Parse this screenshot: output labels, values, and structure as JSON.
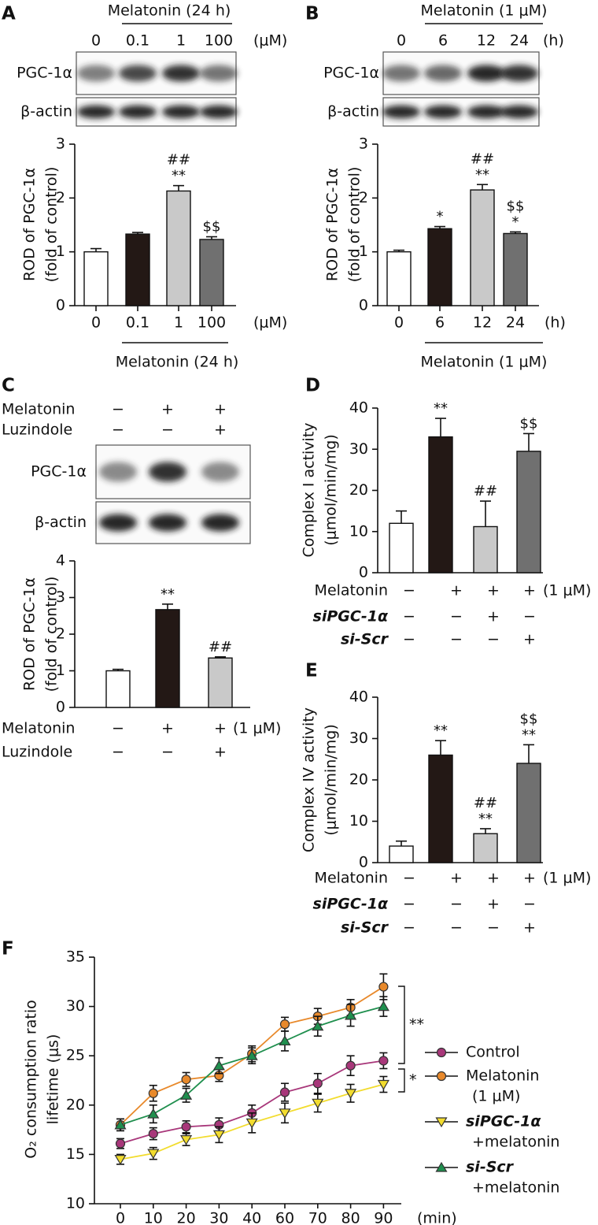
{
  "chart_data": [
    {
      "panel": "A",
      "type": "bar",
      "blot": {
        "title": "Melatonin (24 h)",
        "lanes": [
          "0",
          "0.1",
          "1",
          "100"
        ],
        "unit": "(μM)",
        "bands": [
          "PGC-1α",
          "β-actin"
        ]
      },
      "ylabel": [
        "ROD of PGC-1α",
        "(fold of control)"
      ],
      "ylim": [
        0,
        3
      ],
      "yticks": [
        0,
        1,
        2,
        3
      ],
      "categories": [
        "0",
        "0.1",
        "1",
        "100"
      ],
      "xunit": "(μM)",
      "xgroup": "Melatonin (24 h)",
      "values": [
        1.0,
        1.33,
        2.13,
        1.23
      ],
      "errors": [
        0.06,
        0.03,
        0.1,
        0.05
      ],
      "colors": [
        "#ffffff",
        "#231815",
        "#c9c9c9",
        "#707070"
      ],
      "annotations": [
        [],
        [],
        [
          "##",
          "**"
        ],
        [
          "$$"
        ]
      ]
    },
    {
      "panel": "B",
      "type": "bar",
      "blot": {
        "title": "Melatonin (1 μM)",
        "lanes": [
          "0",
          "6",
          "12",
          "24"
        ],
        "unit": "(h)",
        "bands": [
          "PGC-1α",
          "β-actin"
        ]
      },
      "ylabel": [
        "ROD of PGC-1α",
        "(fold of control)"
      ],
      "ylim": [
        0,
        3
      ],
      "yticks": [
        0,
        1,
        2,
        3
      ],
      "categories": [
        "0",
        "6",
        "12",
        "24"
      ],
      "xunit": "(h)",
      "xgroup": "Melatonin (1 μM)",
      "values": [
        1.0,
        1.43,
        2.15,
        1.34
      ],
      "errors": [
        0.03,
        0.04,
        0.1,
        0.03
      ],
      "colors": [
        "#ffffff",
        "#231815",
        "#c9c9c9",
        "#707070"
      ],
      "annotations": [
        [],
        [
          "*"
        ],
        [
          "##",
          "**"
        ],
        [
          "$$",
          "*"
        ]
      ]
    },
    {
      "panel": "C",
      "type": "bar",
      "blot": {
        "conditions": [
          {
            "name": "Melatonin",
            "signs": [
              "−",
              "+",
              "+"
            ]
          },
          {
            "name": "Luzindole",
            "signs": [
              "−",
              "−",
              "+"
            ]
          }
        ],
        "bands": [
          "PGC-1α",
          "β-actin"
        ]
      },
      "ylabel": [
        "ROD of PGC-1α",
        "(fold of control)"
      ],
      "ylim": [
        0,
        4
      ],
      "yticks": [
        0,
        1,
        2,
        3,
        4
      ],
      "values": [
        1.0,
        2.67,
        1.35
      ],
      "errors": [
        0.04,
        0.15,
        0.03
      ],
      "colors": [
        "#ffffff",
        "#231815",
        "#c9c9c9"
      ],
      "annotations": [
        [],
        [
          "**"
        ],
        [
          "##"
        ]
      ],
      "conditions": [
        {
          "name": "Melatonin",
          "signs": [
            "−",
            "+",
            "+"
          ],
          "unit": "(1 μM)"
        },
        {
          "name": "Luzindole",
          "signs": [
            "−",
            "−",
            "+"
          ]
        }
      ]
    },
    {
      "panel": "D",
      "type": "bar",
      "ylabel": [
        "Complex I activity",
        "(μmol/min/mg)"
      ],
      "ylim": [
        0,
        40
      ],
      "yticks": [
        0,
        10,
        20,
        30,
        40
      ],
      "values": [
        12,
        33,
        11.2,
        29.5
      ],
      "errors": [
        3,
        4.5,
        6.2,
        4.3
      ],
      "colors": [
        "#ffffff",
        "#231815",
        "#c9c9c9",
        "#707070"
      ],
      "annotations": [
        [],
        [
          "**"
        ],
        [
          "##"
        ],
        [
          "$$"
        ]
      ],
      "conditions": [
        {
          "name": "Melatonin",
          "signs": [
            "−",
            "+",
            "+",
            "+"
          ],
          "unit": "(1 μM)"
        },
        {
          "name": "siPGC-1α",
          "italic": true,
          "signs": [
            "−",
            "−",
            "+",
            "−"
          ]
        },
        {
          "name": "si-Scr",
          "italic": true,
          "signs": [
            "−",
            "−",
            "−",
            "+"
          ]
        }
      ]
    },
    {
      "panel": "E",
      "type": "bar",
      "ylabel": [
        "Complex IV activity",
        "(μmol/min/mg)"
      ],
      "ylim": [
        0,
        40
      ],
      "yticks": [
        0,
        10,
        20,
        30,
        40
      ],
      "values": [
        4,
        26,
        7,
        24
      ],
      "errors": [
        1.2,
        3.5,
        1.2,
        4.5
      ],
      "colors": [
        "#ffffff",
        "#231815",
        "#c9c9c9",
        "#707070"
      ],
      "annotations": [
        [],
        [
          "**"
        ],
        [
          "##",
          "**"
        ],
        [
          "$$",
          "**"
        ]
      ],
      "conditions": [
        {
          "name": "Melatonin",
          "signs": [
            "−",
            "+",
            "+",
            "+"
          ],
          "unit": "(1 μM)"
        },
        {
          "name": "siPGC-1α",
          "italic": true,
          "signs": [
            "−",
            "−",
            "+",
            "−"
          ]
        },
        {
          "name": "si-Scr",
          "italic": true,
          "signs": [
            "−",
            "−",
            "−",
            "+"
          ]
        }
      ]
    },
    {
      "panel": "F",
      "type": "line",
      "ylabel": [
        "O₂ consumption ratio",
        "lifetime (μs)"
      ],
      "ylim": [
        10,
        35
      ],
      "yticks": [
        10,
        15,
        20,
        25,
        30,
        35
      ],
      "categories": [
        "0",
        "10",
        "20",
        "30",
        "40",
        "60",
        "70",
        "80",
        "90"
      ],
      "xunit": "(min)",
      "series": [
        {
          "name": [
            "Control"
          ],
          "italic": [
            false
          ],
          "color": "#a8377a",
          "marker": "o",
          "values": [
            16.1,
            17.1,
            17.8,
            18.0,
            19.2,
            21.3,
            22.2,
            24.0,
            24.5
          ],
          "errors": [
            0.5,
            0.6,
            0.6,
            0.7,
            0.8,
            0.9,
            1.0,
            1.0,
            0.8
          ]
        },
        {
          "name": [
            "Melatonin",
            "(1 μM)"
          ],
          "italic": [
            false,
            false
          ],
          "color": "#e8892b",
          "marker": "o",
          "values": [
            18.0,
            21.2,
            22.6,
            23.0,
            25.2,
            28.2,
            29.0,
            29.9,
            32.0
          ],
          "errors": [
            0.6,
            0.8,
            0.7,
            0.6,
            0.8,
            0.7,
            0.8,
            0.8,
            1.3
          ]
        },
        {
          "name": [
            "siPGC-1α",
            "+melatonin"
          ],
          "italic": [
            true,
            false
          ],
          "color": "#f2dc2e",
          "marker": "v",
          "values": [
            14.5,
            15.1,
            16.5,
            17.0,
            18.2,
            19.2,
            20.2,
            21.2,
            22.1
          ],
          "errors": [
            0.5,
            0.6,
            0.6,
            0.8,
            1.0,
            1.0,
            0.9,
            0.9,
            0.8
          ]
        },
        {
          "name": [
            "si-Scr",
            "+melatonin"
          ],
          "italic": [
            true,
            false
          ],
          "color": "#1f8f4e",
          "marker": "^",
          "values": [
            18.0,
            19.1,
            21.0,
            24.0,
            25.0,
            26.5,
            28.0,
            29.1,
            30.0
          ],
          "errors": [
            0.6,
            0.9,
            0.7,
            0.8,
            0.8,
            1.0,
            1.0,
            1.1,
            1.0
          ]
        }
      ],
      "annotations": [
        "**",
        "*"
      ]
    }
  ]
}
